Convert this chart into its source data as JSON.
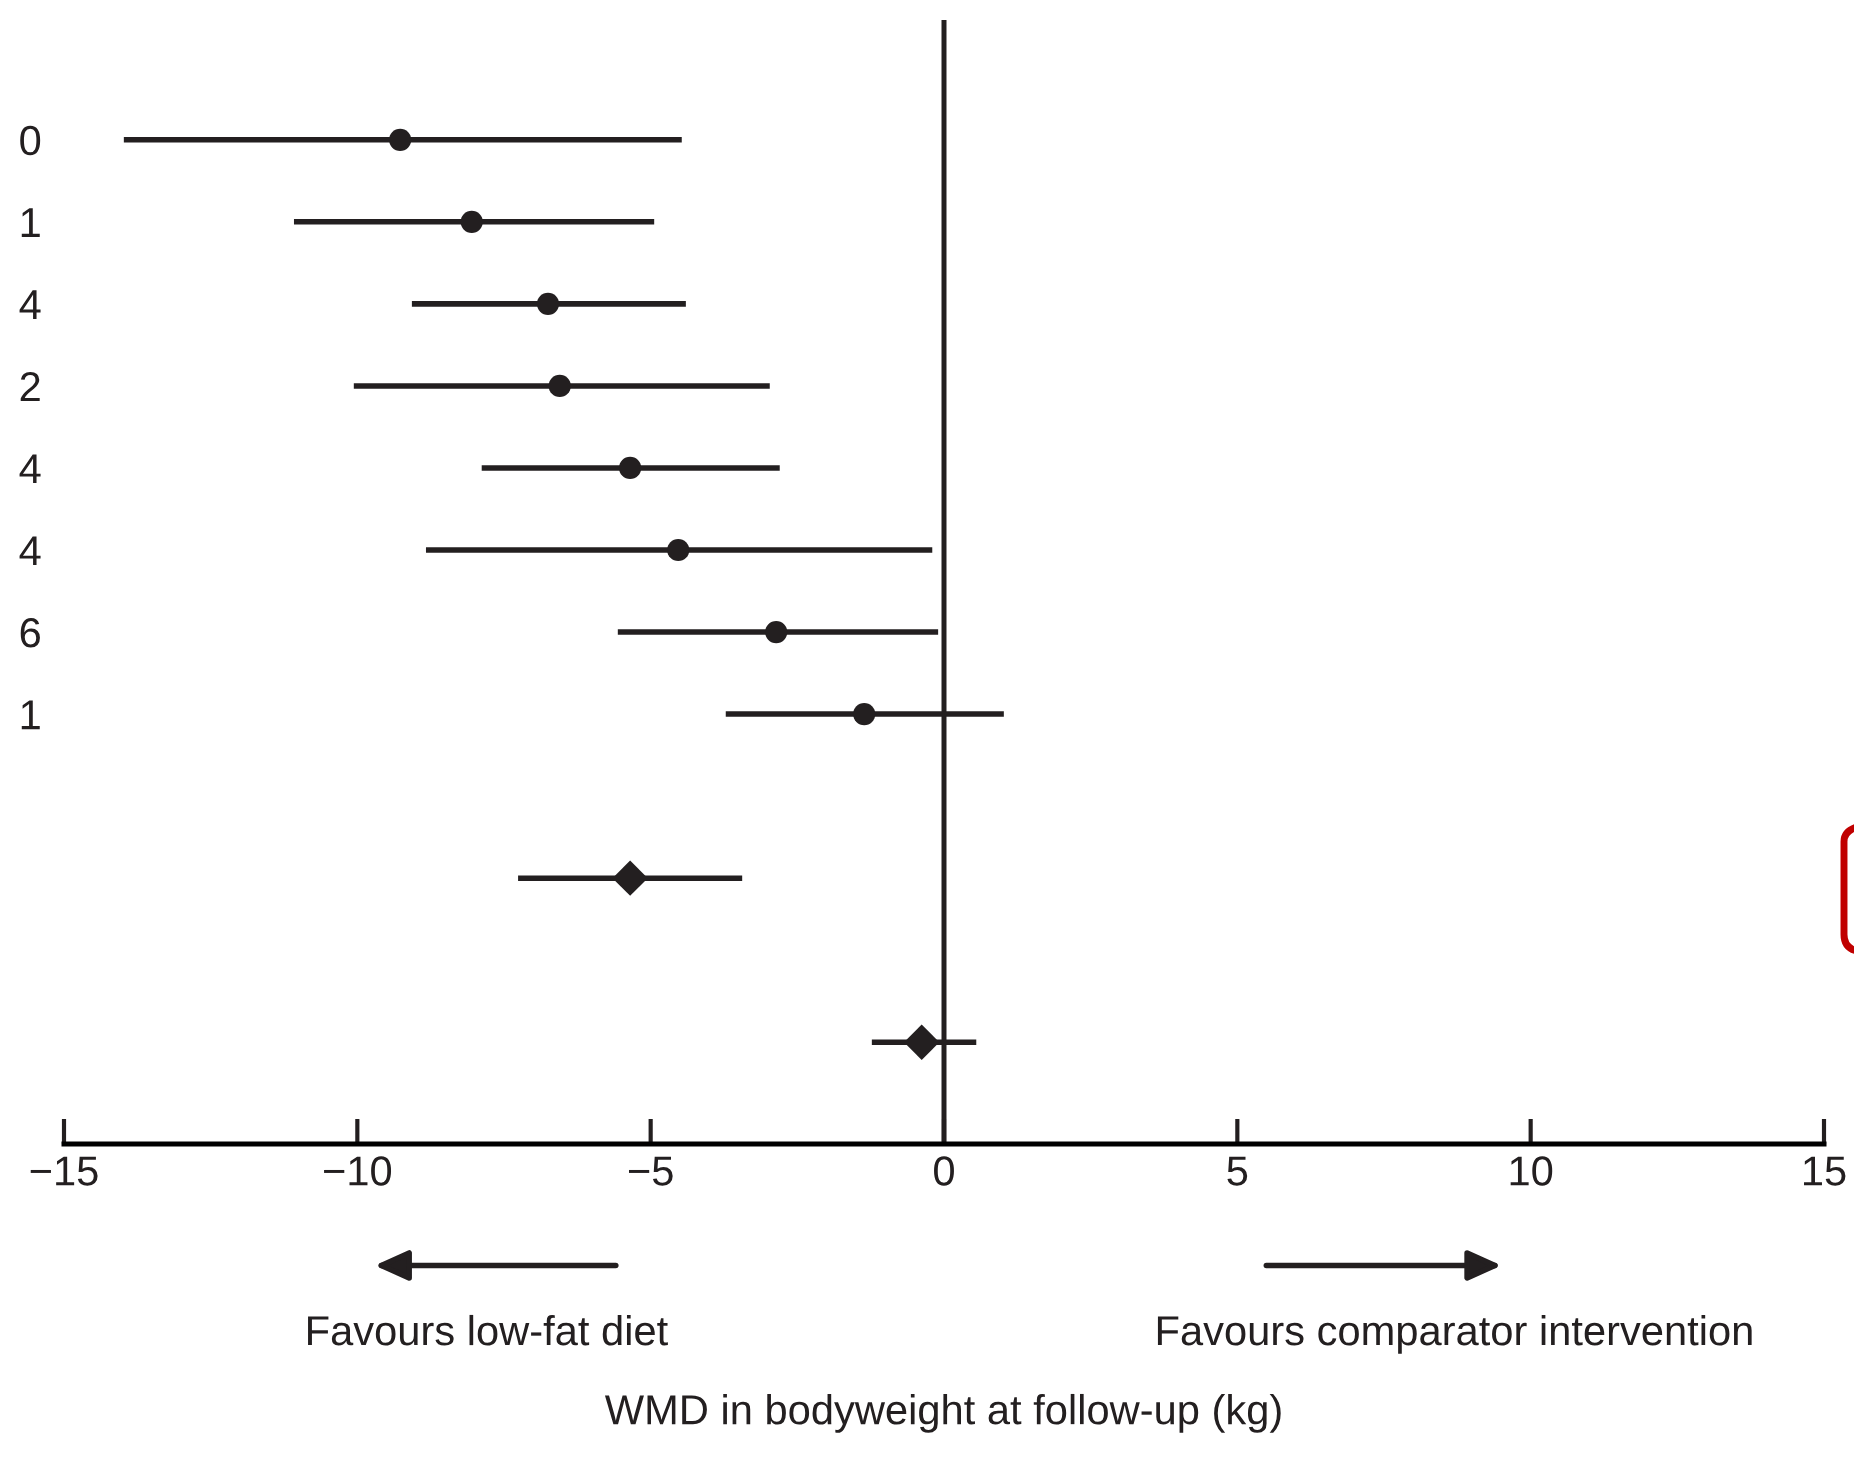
{
  "chart_data": {
    "type": "scatter",
    "orientation": "horizontal",
    "categories": [
      "0",
      "1",
      "4",
      "2",
      "4",
      "4",
      "6",
      "1",
      null,
      null,
      null,
      null
    ],
    "xlabel": "WMD in bodyweight at follow-up (kg)",
    "annotations": [
      "Favours low-fat diet",
      "Favours comparator intervention"
    ],
    "series": [
      {
        "color": "#231f20",
        "marker": "circle",
        "values": [
          -9.27,
          -8.05,
          -6.75,
          -6.55,
          -5.35,
          -4.53,
          -2.86,
          -1.36,
          null,
          null,
          null,
          null
        ],
        "errors": [
          [
            -13.98,
            -4.47
          ],
          [
            -11.08,
            -4.94
          ],
          [
            -9.07,
            -4.4
          ],
          [
            -10.06,
            -2.97
          ],
          [
            -7.88,
            -2.8
          ],
          [
            -8.83,
            -0.2
          ],
          [
            -5.56,
            -0.1
          ],
          [
            -3.72,
            1.02
          ],
          null,
          null,
          null,
          null
        ]
      },
      {
        "color": "#231f20",
        "marker": "diamond",
        "values": [
          null,
          null,
          null,
          null,
          null,
          null,
          null,
          null,
          null,
          -5.35,
          null,
          -0.38
        ],
        "errors": [
          null,
          null,
          null,
          null,
          null,
          null,
          null,
          null,
          null,
          [
            -7.26,
            -3.44
          ],
          null,
          [
            -1.23,
            0.55
          ]
        ]
      }
    ],
    "xlim": [
      -15,
      15
    ],
    "xticks": [
      {
        "value": -15,
        "label": "−15"
      },
      {
        "value": -10,
        "label": "−10"
      },
      {
        "value": -5,
        "label": "−5"
      },
      0,
      5,
      10,
      15
    ],
    "ref_lines": [
      {
        "axis": "x",
        "value": 0,
        "color": "#231f20"
      }
    ],
    "grid": false,
    "legend": false
  }
}
